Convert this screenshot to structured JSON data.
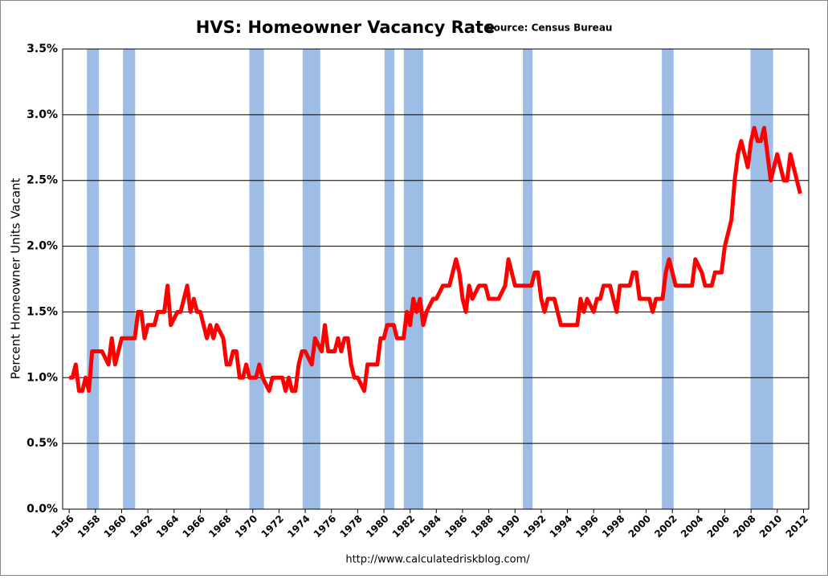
{
  "chart_data": {
    "type": "line",
    "title": "HVS: Homeowner Vacancy Rate",
    "subtitle": "Source: Census Bureau",
    "ylabel": "Percent Homeowner Units Vacant",
    "footer": "http://www.calculatedriskblog.com/",
    "color": "#ff0000",
    "recession_color": "#9dbde6",
    "grid": true,
    "xlim": [
      1955.5,
      2012.4
    ],
    "ylim": [
      0,
      3.5
    ],
    "yticks": [
      {
        "value": 0,
        "label": "0.0%"
      },
      {
        "value": 0.5,
        "label": "0.5%"
      },
      {
        "value": 1,
        "label": "1.0%"
      },
      {
        "value": 1.5,
        "label": "1.5%"
      },
      {
        "value": 2,
        "label": "2.0%"
      },
      {
        "value": 2.5,
        "label": "2.5%"
      },
      {
        "value": 3,
        "label": "3.0%"
      },
      {
        "value": 3.5,
        "label": "3.5%"
      }
    ],
    "xticks": [
      1956,
      1958,
      1960,
      1962,
      1964,
      1966,
      1968,
      1970,
      1972,
      1974,
      1976,
      1978,
      1980,
      1982,
      1984,
      1986,
      1988,
      1990,
      1992,
      1994,
      1996,
      1998,
      2000,
      2002,
      2004,
      2006,
      2008,
      2010,
      2012
    ],
    "recessions": [
      [
        1957.35,
        1958.27
      ],
      [
        1960.1,
        1961.03
      ],
      [
        1969.74,
        1970.85
      ],
      [
        1973.8,
        1975.15
      ],
      [
        1980.05,
        1980.8
      ],
      [
        1981.52,
        1983.0
      ],
      [
        1990.6,
        1991.34
      ],
      [
        2001.2,
        2002.1
      ],
      [
        2007.96,
        2009.68
      ]
    ],
    "x": [
      1956,
      1956.25,
      1956.5,
      1956.75,
      1957,
      1957.25,
      1957.5,
      1957.75,
      1958.5,
      1959,
      1959.25,
      1959.5,
      1960,
      1961,
      1961.25,
      1961.5,
      1961.75,
      1962,
      1962.5,
      1962.75,
      1963.25,
      1963.5,
      1963.75,
      1964.25,
      1964.5,
      1965,
      1965.25,
      1965.5,
      1965.75,
      1966,
      1966.25,
      1966.5,
      1966.75,
      1967,
      1967.25,
      1967.75,
      1968,
      1968.25,
      1968.5,
      1968.75,
      1969,
      1969.25,
      1969.5,
      1969.75,
      1970.25,
      1970.5,
      1970.75,
      1971.25,
      1971.5,
      1972.25,
      1972.5,
      1972.75,
      1973,
      1973.25,
      1973.5,
      1973.75,
      1974,
      1974.5,
      1974.75,
      1975.25,
      1975.5,
      1975.75,
      1976.25,
      1976.5,
      1976.75,
      1977,
      1977.25,
      1977.5,
      1977.75,
      1978,
      1978.5,
      1978.75,
      1979.5,
      1979.75,
      1980,
      1980.25,
      1980.75,
      1981,
      1981.5,
      1981.75,
      1982,
      1982.25,
      1982.5,
      1982.75,
      1983,
      1983.25,
      1983.75,
      1984,
      1984.5,
      1985,
      1985.5,
      1985.75,
      1986,
      1986.25,
      1986.5,
      1986.75,
      1987.25,
      1987.75,
      1988,
      1988.75,
      1989.25,
      1989.5,
      1990,
      1991.25,
      1991.5,
      1991.75,
      1992,
      1992.25,
      1992.5,
      1993,
      1993.25,
      1993.5,
      1994.75,
      1995,
      1995.25,
      1995.5,
      1996,
      1996.25,
      1996.5,
      1996.75,
      1997.25,
      1997.5,
      1997.75,
      1998,
      1998.75,
      1999,
      1999.25,
      1999.5,
      2000.25,
      2000.5,
      2000.75,
      2001.25,
      2001.5,
      2001.75,
      2002,
      2002.25,
      2003.5,
      2003.75,
      2004.25,
      2004.5,
      2005,
      2005.25,
      2005.75,
      2006,
      2006.5,
      2006.75,
      2007,
      2007.25,
      2007.75,
      2008,
      2008.25,
      2008.5,
      2008.75,
      2009,
      2009.25,
      2009.5,
      2009.75,
      2010,
      2010.25,
      2010.5,
      2010.75,
      2011,
      2011.25,
      2011.5,
      2011.75
    ],
    "values": [
      1.0,
      1.0,
      1.1,
      0.9,
      0.9,
      1.0,
      0.9,
      1.2,
      1.2,
      1.1,
      1.3,
      1.1,
      1.3,
      1.3,
      1.5,
      1.5,
      1.3,
      1.4,
      1.4,
      1.5,
      1.5,
      1.7,
      1.4,
      1.5,
      1.5,
      1.7,
      1.5,
      1.6,
      1.5,
      1.5,
      1.4,
      1.3,
      1.4,
      1.3,
      1.4,
      1.3,
      1.1,
      1.1,
      1.2,
      1.2,
      1.0,
      1.0,
      1.1,
      1.0,
      1.0,
      1.1,
      1.0,
      0.9,
      1.0,
      1.0,
      0.9,
      1.0,
      0.9,
      0.9,
      1.1,
      1.2,
      1.2,
      1.1,
      1.3,
      1.2,
      1.4,
      1.2,
      1.2,
      1.3,
      1.2,
      1.3,
      1.3,
      1.1,
      1.0,
      1.0,
      0.9,
      1.1,
      1.1,
      1.3,
      1.3,
      1.4,
      1.4,
      1.3,
      1.3,
      1.5,
      1.4,
      1.6,
      1.5,
      1.6,
      1.4,
      1.5,
      1.6,
      1.6,
      1.7,
      1.7,
      1.9,
      1.8,
      1.6,
      1.5,
      1.7,
      1.6,
      1.7,
      1.7,
      1.6,
      1.6,
      1.7,
      1.9,
      1.7,
      1.7,
      1.8,
      1.8,
      1.6,
      1.5,
      1.6,
      1.6,
      1.5,
      1.4,
      1.4,
      1.6,
      1.5,
      1.6,
      1.5,
      1.6,
      1.6,
      1.7,
      1.7,
      1.6,
      1.5,
      1.7,
      1.7,
      1.8,
      1.8,
      1.6,
      1.6,
      1.5,
      1.6,
      1.6,
      1.8,
      1.9,
      1.8,
      1.7,
      1.7,
      1.9,
      1.8,
      1.7,
      1.7,
      1.8,
      1.8,
      2.0,
      2.2,
      2.5,
      2.7,
      2.8,
      2.6,
      2.8,
      2.9,
      2.8,
      2.8,
      2.9,
      2.7,
      2.5,
      2.6,
      2.7,
      2.6,
      2.5,
      2.5,
      2.7,
      2.6,
      2.5,
      2.4
    ]
  }
}
